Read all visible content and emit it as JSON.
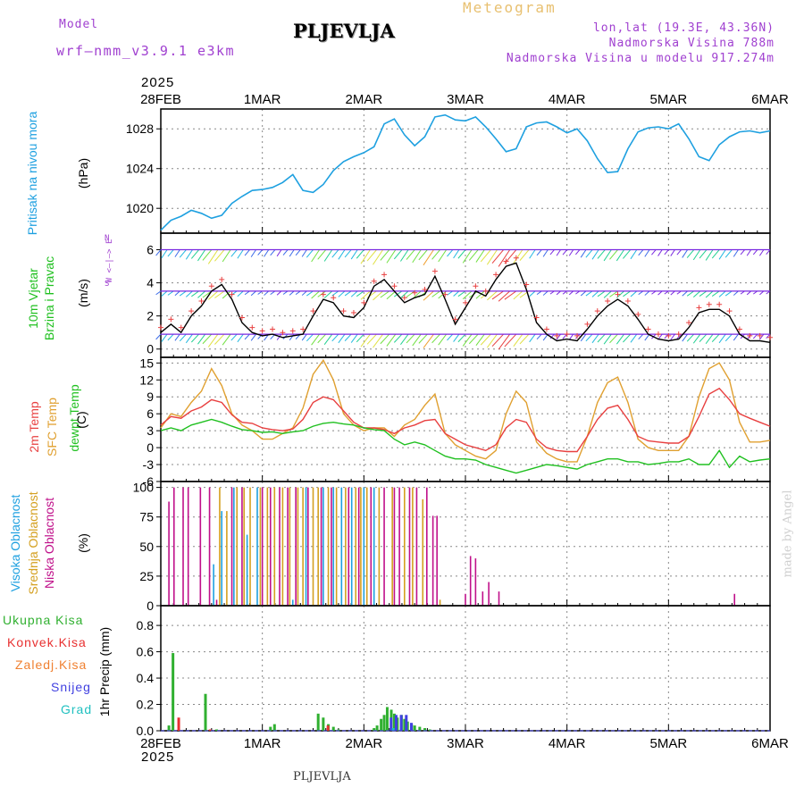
{
  "header": {
    "model_label": "Model",
    "model_name": "wrf—nmm_v3.9.1 e3km",
    "station": "PLJEVLJA",
    "meteogram": "Meteogram",
    "lonlat": "lon,lat (19.3E, 43.36N)",
    "elevation": "Nadmorska Visina 788m",
    "model_elevation": "Nadmorska Visina u modelu 917.274m",
    "year_top": "2025",
    "year_bottom": "2025",
    "footer_station": "PLJEVLJA",
    "watermark": "made by Angel"
  },
  "colors": {
    "pressure": "#1ea0e0",
    "temp2m": "#e84040",
    "sfc": "#e0a030",
    "dewpt": "#20c020",
    "high_cloud": "#1ea0e0",
    "mid_cloud": "#d4a020",
    "low_cloud": "#c0108a",
    "total_precip": "#30b030",
    "conv": "#e83030",
    "frz": "#f08030",
    "snow": "#4040e0",
    "grad": "#20c0c0",
    "purple": "#a040d0"
  },
  "axis_labels": {
    "pressure_title": "Pritisak na nivou mora",
    "pressure_unit": "(hPa)",
    "wind_title1": "10m Vjetar",
    "wind_title2": "Brzina i Pravac",
    "wind_unit": "(m/s)",
    "wind_rose": "W <—|—> E",
    "wind_rose_n": "N",
    "wind_rose_s": "S",
    "temp_t1": "2m Temp",
    "temp_t2": "SFC Temp",
    "temp_t3": "dewpt Temp",
    "temp_unit": "(C)",
    "cloud_t1": "Visoka Oblacnost",
    "cloud_t2": "Srednja Oblacnost",
    "cloud_t3": "Niska Oblacnost",
    "cloud_unit": "(%)",
    "precip_unit": "1hr Precip (mm)"
  },
  "precip_legend": [
    "Ukupna Kisa",
    "Konvek.Kisa",
    "Zaledj.Kisa",
    "Snijeg",
    "Grad"
  ],
  "chart_data": [
    {
      "type": "line",
      "title": "Pritisak na nivou mora",
      "ylabel": "(hPa)",
      "x_days": [
        "28FEB",
        "1MAR",
        "2MAR",
        "3MAR",
        "4MAR",
        "5MAR",
        "6MAR"
      ],
      "ylim": [
        1017.5,
        1030
      ],
      "yticks": [
        1020,
        1024,
        1028
      ],
      "series": [
        {
          "name": "Pressure",
          "x": [
            0,
            0.1,
            0.2,
            0.3,
            0.4,
            0.5,
            0.6,
            0.7,
            0.8,
            0.9,
            1.0,
            1.1,
            1.2,
            1.3,
            1.4,
            1.5,
            1.6,
            1.7,
            1.8,
            1.9,
            2.0,
            2.1,
            2.2,
            2.3,
            2.4,
            2.5,
            2.6,
            2.7,
            2.8,
            2.9,
            3.0,
            3.1,
            3.2,
            3.3,
            3.4,
            3.5,
            3.6,
            3.7,
            3.8,
            3.9,
            4.0,
            4.1,
            4.2,
            4.3,
            4.4,
            4.5,
            4.6,
            4.7,
            4.8,
            4.9,
            5.0,
            5.1,
            5.2,
            5.3,
            5.4,
            5.5,
            5.6,
            5.7,
            5.8,
            5.9,
            6.0
          ],
          "values": [
            1017.8,
            1018.8,
            1019.2,
            1019.8,
            1019.5,
            1019.0,
            1019.3,
            1020.5,
            1021.2,
            1021.8,
            1021.9,
            1022.1,
            1022.6,
            1023.4,
            1021.8,
            1021.6,
            1022.4,
            1023.8,
            1024.7,
            1025.2,
            1025.6,
            1026.2,
            1028.5,
            1029.0,
            1027.4,
            1026.3,
            1027.2,
            1029.2,
            1029.4,
            1028.9,
            1028.8,
            1029.2,
            1028.2,
            1027.0,
            1025.7,
            1026.0,
            1028.2,
            1028.6,
            1028.7,
            1028.2,
            1027.6,
            1028.0,
            1026.8,
            1025.0,
            1023.6,
            1023.7,
            1026.0,
            1027.7,
            1028.1,
            1028.2,
            1028.0,
            1028.5,
            1027.0,
            1025.2,
            1024.8,
            1026.4,
            1027.2,
            1027.7,
            1027.8,
            1027.6,
            1027.8
          ]
        }
      ]
    },
    {
      "type": "line",
      "title": "10m Vjetar Brzina i Pravac",
      "ylabel": "(m/s)",
      "ylim": [
        -0.5,
        7
      ],
      "yticks": [
        0,
        2,
        4,
        6
      ],
      "series": [
        {
          "name": "Wind speed",
          "x": [
            0,
            0.1,
            0.2,
            0.3,
            0.4,
            0.5,
            0.6,
            0.7,
            0.8,
            0.9,
            1.0,
            1.1,
            1.2,
            1.3,
            1.4,
            1.5,
            1.6,
            1.7,
            1.8,
            1.9,
            2.0,
            2.1,
            2.2,
            2.3,
            2.4,
            2.5,
            2.6,
            2.7,
            2.8,
            2.9,
            3.0,
            3.1,
            3.2,
            3.3,
            3.4,
            3.5,
            3.6,
            3.7,
            3.8,
            3.9,
            4.0,
            4.1,
            4.2,
            4.3,
            4.4,
            4.5,
            4.6,
            4.7,
            4.8,
            4.9,
            5.0,
            5.1,
            5.2,
            5.3,
            5.4,
            5.5,
            5.6,
            5.7,
            5.8,
            5.9,
            6.0
          ],
          "values": [
            1.0,
            1.5,
            1.0,
            2.0,
            2.6,
            3.5,
            3.9,
            3.0,
            1.6,
            1.0,
            0.8,
            0.9,
            0.7,
            0.8,
            0.9,
            2.0,
            3.0,
            2.8,
            2.0,
            1.9,
            2.5,
            3.8,
            4.2,
            3.5,
            2.8,
            3.1,
            3.3,
            4.4,
            3.0,
            1.5,
            2.5,
            3.5,
            3.2,
            4.2,
            5.0,
            5.2,
            3.6,
            1.6,
            0.9,
            0.5,
            0.6,
            0.5,
            1.2,
            2.0,
            2.6,
            3.0,
            2.6,
            1.8,
            0.9,
            0.6,
            0.5,
            0.6,
            1.3,
            2.2,
            2.4,
            2.4,
            2.0,
            0.9,
            0.5,
            0.5,
            0.4
          ]
        }
      ]
    },
    {
      "type": "line",
      "title": "Temperatures",
      "ylabel": "(C)",
      "ylim": [
        -6,
        16
      ],
      "yticks": [
        -6,
        -3,
        0,
        3,
        6,
        9,
        12,
        15
      ],
      "series": [
        {
          "name": "2m Temp",
          "x": [
            0,
            0.1,
            0.2,
            0.3,
            0.4,
            0.5,
            0.6,
            0.7,
            0.8,
            0.9,
            1.0,
            1.1,
            1.2,
            1.3,
            1.4,
            1.5,
            1.6,
            1.7,
            1.8,
            1.9,
            2.0,
            2.1,
            2.2,
            2.3,
            2.4,
            2.5,
            2.6,
            2.7,
            2.8,
            2.9,
            3.0,
            3.1,
            3.2,
            3.3,
            3.4,
            3.5,
            3.6,
            3.7,
            3.8,
            3.9,
            4.0,
            4.1,
            4.2,
            4.3,
            4.4,
            4.5,
            4.6,
            4.7,
            4.8,
            4.9,
            5.0,
            5.1,
            5.2,
            5.3,
            5.4,
            5.5,
            5.6,
            5.7,
            5.8,
            5.9,
            6.0
          ],
          "values": [
            4.0,
            5.5,
            5.2,
            6.5,
            7.2,
            8.5,
            8.0,
            5.8,
            4.5,
            4.3,
            3.5,
            3.2,
            3.0,
            3.3,
            5.0,
            8.0,
            9.0,
            8.5,
            6.5,
            4.5,
            3.5,
            3.5,
            3.2,
            2.5,
            3.5,
            4.0,
            4.8,
            5.0,
            2.5,
            1.5,
            0.5,
            0.0,
            -0.5,
            0.5,
            3.5,
            5.0,
            4.5,
            1.5,
            0.0,
            -0.5,
            -0.7,
            -0.7,
            2.0,
            5.0,
            7.0,
            7.5,
            5.0,
            2.0,
            1.2,
            1.0,
            0.8,
            0.8,
            2.0,
            5.5,
            9.5,
            10.5,
            8.5,
            6.0,
            5.2,
            4.5,
            3.8
          ]
        },
        {
          "name": "SFC Temp",
          "x": [
            0,
            0.1,
            0.2,
            0.3,
            0.4,
            0.5,
            0.6,
            0.7,
            0.8,
            0.9,
            1.0,
            1.1,
            1.2,
            1.3,
            1.4,
            1.5,
            1.6,
            1.7,
            1.8,
            1.9,
            2.0,
            2.1,
            2.2,
            2.3,
            2.4,
            2.5,
            2.6,
            2.7,
            2.8,
            2.9,
            3.0,
            3.1,
            3.2,
            3.3,
            3.4,
            3.5,
            3.6,
            3.7,
            3.8,
            3.9,
            4.0,
            4.1,
            4.2,
            4.3,
            4.4,
            4.5,
            4.6,
            4.7,
            4.8,
            4.9,
            5.0,
            5.1,
            5.2,
            5.3,
            5.4,
            5.5,
            5.6,
            5.7,
            5.8,
            5.9,
            6.0
          ],
          "values": [
            3.5,
            6.0,
            5.5,
            8.0,
            10.0,
            14.0,
            11.0,
            6.0,
            4.0,
            3.0,
            1.5,
            1.5,
            2.5,
            3.5,
            7.0,
            13.0,
            15.5,
            12.0,
            6.0,
            4.0,
            3.0,
            3.5,
            3.5,
            2.0,
            4.0,
            5.0,
            7.5,
            9.5,
            2.5,
            0.5,
            -0.5,
            -1.5,
            -2.0,
            -0.5,
            6.0,
            10.0,
            8.0,
            1.0,
            -1.0,
            -2.0,
            -2.5,
            -2.5,
            2.0,
            8.0,
            11.5,
            12.5,
            8.0,
            1.5,
            0.0,
            -0.5,
            -0.5,
            -0.5,
            2.0,
            9.0,
            14.0,
            15.0,
            12.0,
            4.5,
            1.0,
            1.0,
            1.3
          ]
        },
        {
          "name": "dewpt Temp",
          "x": [
            0,
            0.1,
            0.2,
            0.3,
            0.4,
            0.5,
            0.6,
            0.7,
            0.8,
            0.9,
            1.0,
            1.1,
            1.2,
            1.3,
            1.4,
            1.5,
            1.6,
            1.7,
            1.8,
            1.9,
            2.0,
            2.1,
            2.2,
            2.3,
            2.4,
            2.5,
            2.6,
            2.7,
            2.8,
            2.9,
            3.0,
            3.1,
            3.2,
            3.3,
            3.4,
            3.5,
            3.6,
            3.7,
            3.8,
            3.9,
            4.0,
            4.1,
            4.2,
            4.3,
            4.4,
            4.5,
            4.6,
            4.7,
            4.8,
            4.9,
            5.0,
            5.1,
            5.2,
            5.3,
            5.4,
            5.5,
            5.6,
            5.7,
            5.8,
            5.9,
            6.0
          ],
          "values": [
            3.0,
            3.5,
            3.0,
            4.0,
            4.5,
            5.0,
            4.5,
            3.8,
            3.2,
            3.0,
            2.7,
            2.8,
            2.5,
            2.8,
            3.0,
            3.8,
            4.3,
            4.5,
            4.2,
            4.0,
            3.5,
            3.2,
            3.0,
            1.5,
            0.5,
            1.0,
            0.5,
            -0.5,
            -1.5,
            -2.0,
            -2.0,
            -2.2,
            -3.0,
            -3.5,
            -4.0,
            -4.5,
            -4.0,
            -3.5,
            -3.0,
            -3.2,
            -3.5,
            -3.8,
            -3.0,
            -2.5,
            -2.0,
            -2.0,
            -2.5,
            -2.5,
            -3.0,
            -2.8,
            -2.5,
            -2.5,
            -2.0,
            -3.0,
            -3.0,
            -0.5,
            -3.5,
            -1.5,
            -2.5,
            -2.2,
            -2.0
          ]
        }
      ]
    },
    {
      "type": "bar",
      "title": "Oblacnost",
      "ylabel": "(%)",
      "ylim": [
        0,
        105
      ],
      "yticks": [
        0,
        25,
        50,
        75,
        100
      ],
      "series": [
        {
          "name": "Visoka Oblacnost",
          "x": [
            0.52,
            0.6,
            0.72,
            0.85,
            0.95,
            1.3,
            1.43,
            1.6,
            1.7,
            1.78,
            1.88,
            2.0,
            2.1
          ],
          "values": [
            35,
            80,
            100,
            60,
            100,
            5,
            100,
            100,
            100,
            100,
            100,
            100,
            100
          ]
        },
        {
          "name": "Srednja Oblacnost",
          "x": [
            0.58,
            0.65,
            0.75,
            0.82,
            0.88,
            0.98,
            1.05,
            1.12,
            1.2,
            1.27,
            1.35,
            1.4,
            1.5,
            1.55,
            1.65,
            1.73,
            1.82,
            1.92,
            1.97,
            2.03,
            2.15,
            2.28,
            2.4,
            2.48,
            2.58,
            2.75
          ],
          "values": [
            100,
            80,
            100,
            100,
            100,
            100,
            100,
            100,
            100,
            100,
            100,
            100,
            100,
            100,
            100,
            100,
            100,
            100,
            100,
            100,
            100,
            100,
            100,
            100,
            90,
            5
          ]
        },
        {
          "name": "Niska Oblacnost",
          "x": [
            0.08,
            0.13,
            0.22,
            0.27,
            0.39,
            0.48,
            0.55,
            0.7,
            0.8,
            1.0,
            1.08,
            1.17,
            1.25,
            1.33,
            1.45,
            1.58,
            1.68,
            1.85,
            1.95,
            2.07,
            2.2,
            2.3,
            2.35,
            2.45,
            2.52,
            2.62,
            2.68,
            2.72,
            3.0,
            3.05,
            3.1,
            3.17,
            3.23,
            3.33,
            5.65
          ],
          "values": [
            88,
            100,
            100,
            100,
            100,
            100,
            5,
            100,
            100,
            100,
            100,
            100,
            100,
            100,
            100,
            100,
            100,
            100,
            100,
            100,
            100,
            100,
            100,
            100,
            100,
            100,
            76,
            76,
            10,
            42,
            40,
            12,
            20,
            12,
            10
          ]
        }
      ]
    },
    {
      "type": "bar",
      "title": "1hr Precip",
      "ylabel": "1hr Precip (mm)",
      "ylim": [
        0,
        0.95
      ],
      "yticks": [
        0.0,
        0.2,
        0.4,
        0.6,
        0.8
      ],
      "series": [
        {
          "name": "Ukupna Kisa",
          "x": [
            0.08,
            0.12,
            0.44,
            0.55,
            1.08,
            1.12,
            1.55,
            1.6,
            1.65,
            1.7,
            1.75,
            2.1,
            2.13,
            2.17,
            2.2,
            2.23,
            2.27,
            2.3,
            2.33,
            2.37,
            2.4,
            2.43,
            2.47,
            2.5,
            2.55,
            2.6,
            2.65
          ],
          "values": [
            0.04,
            0.59,
            0.28,
            0.01,
            0.03,
            0.05,
            0.13,
            0.1,
            0.05,
            0.03,
            0.01,
            0.02,
            0.04,
            0.09,
            0.12,
            0.18,
            0.16,
            0.13,
            0.1,
            0.12,
            0.09,
            0.07,
            0.05,
            0.04,
            0.03,
            0.02,
            0.01
          ]
        },
        {
          "name": "Konvek.Kisa",
          "x": [
            0.15,
            0.46,
            1.62
          ],
          "values": [
            0.1,
            0.01,
            0.04
          ]
        },
        {
          "name": "Zaledj.Kisa",
          "x": [],
          "values": []
        },
        {
          "name": "Snijeg",
          "x": [
            2.25,
            2.3,
            2.35,
            2.4,
            2.45
          ],
          "values": [
            0.1,
            0.12,
            0.12,
            0.12,
            0.06
          ]
        },
        {
          "name": "Grad",
          "x": [
            2.28
          ],
          "values": [
            0.02
          ]
        }
      ]
    }
  ]
}
